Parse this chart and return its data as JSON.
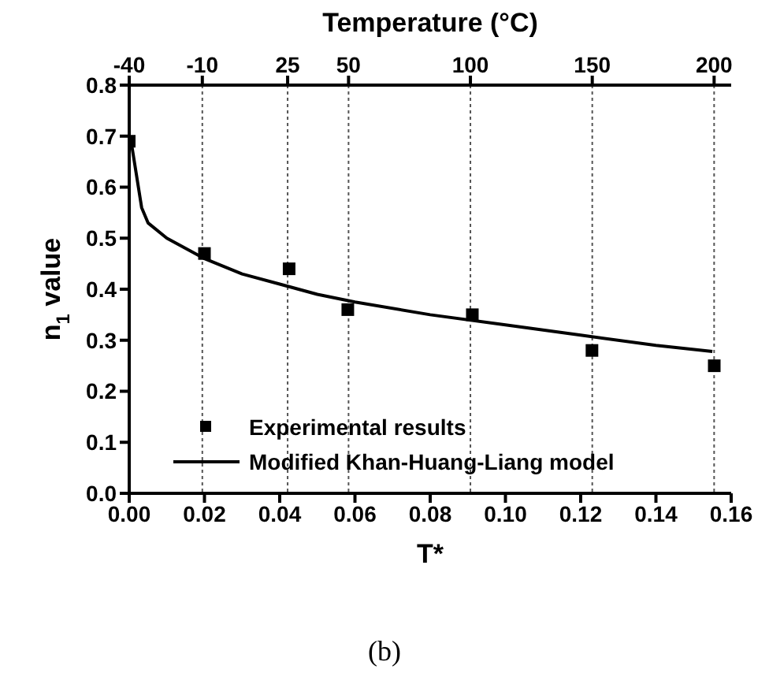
{
  "chart_data": {
    "type": "scatter",
    "xlabel": "T*",
    "ylabel": "n$_{1}$ value",
    "x2label": "Temperature (°C)",
    "xlim": [
      0,
      0.16
    ],
    "xticks": [
      {
        "value": 0,
        "label": "0.00"
      },
      {
        "value": 0.02,
        "label": "0.02"
      },
      {
        "value": 0.04,
        "label": "0.04"
      },
      {
        "value": 0.06,
        "label": "0.06"
      },
      {
        "value": 0.08,
        "label": "0.08"
      },
      {
        "value": 0.1,
        "label": "0.10"
      },
      {
        "value": 0.12,
        "label": "0.12"
      },
      {
        "value": 0.14,
        "label": "0.14"
      },
      {
        "value": 0.16,
        "label": "0.16"
      }
    ],
    "x2lim": [
      -40,
      207
    ],
    "x2ticks": [
      -40,
      -10,
      25,
      50,
      100,
      150,
      200
    ],
    "ylim": [
      0,
      0.8
    ],
    "yticks": [
      {
        "value": 0,
        "label": "0.0"
      },
      {
        "value": 0.1,
        "label": "0.1"
      },
      {
        "value": 0.2,
        "label": "0.2"
      },
      {
        "value": 0.3,
        "label": "0.3"
      },
      {
        "value": 0.4,
        "label": "0.4"
      },
      {
        "value": 0.5,
        "label": "0.5"
      },
      {
        "value": 0.6,
        "label": "0.6"
      },
      {
        "value": 0.7,
        "label": "0.7"
      },
      {
        "value": 0.8,
        "label": "0.8"
      }
    ],
    "series": [
      {
        "name": "Experimental results",
        "color": "#000000",
        "marker": "square",
        "x": [
          0,
          0.02,
          0.0425,
          0.0581,
          0.0912,
          0.123,
          0.1555
        ],
        "values": [
          0.69,
          0.47,
          0.44,
          0.36,
          0.35,
          0.28,
          0.25
        ]
      },
      {
        "name": "Modified Khan-Huang-Liang model",
        "type": "line",
        "color": "#000000",
        "marker": "none",
        "line_style": "solid",
        "x": [
          0.0005,
          0.0033,
          0.005,
          0.01,
          0.02,
          0.03,
          0.04,
          0.05,
          0.06,
          0.08,
          0.1,
          0.12,
          0.14,
          0.155
        ],
        "values": [
          0.69,
          0.56,
          0.53,
          0.5,
          0.46,
          0.43,
          0.41,
          0.39,
          0.375,
          0.35,
          0.33,
          0.31,
          0.29,
          0.278
        ]
      }
    ],
    "ref_lines": [
      {
        "axis": "x2",
        "value": -10,
        "line_style": "dotted",
        "color": "#555555"
      },
      {
        "axis": "x2",
        "value": 25,
        "line_style": "dotted",
        "color": "#555555"
      },
      {
        "axis": "x2",
        "value": 50,
        "line_style": "dotted",
        "color": "#555555"
      },
      {
        "axis": "x2",
        "value": 100,
        "line_style": "dotted",
        "color": "#555555"
      },
      {
        "axis": "x2",
        "value": 150,
        "line_style": "dotted",
        "color": "#555555"
      },
      {
        "axis": "x2",
        "value": 200,
        "line_style": "dotted",
        "color": "#555555"
      }
    ],
    "legend": "bottom",
    "annotations": [
      "(b)"
    ]
  }
}
